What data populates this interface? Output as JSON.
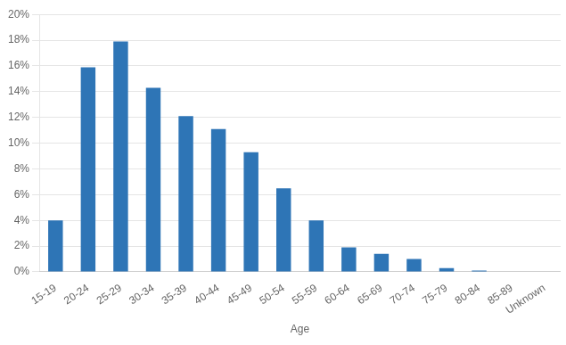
{
  "chart_data": {
    "type": "bar",
    "categories": [
      "15-19",
      "20-24",
      "25-29",
      "30-34",
      "35-39",
      "40-44",
      "45-49",
      "50-54",
      "55-59",
      "60-64",
      "65-69",
      "70-74",
      "75-79",
      "80-84",
      "85-89",
      "Unknown"
    ],
    "values": [
      4.0,
      15.9,
      17.9,
      14.3,
      12.1,
      11.1,
      9.3,
      6.5,
      4.0,
      1.9,
      1.4,
      1.0,
      0.3,
      0.1,
      0.0,
      0.0
    ],
    "color": "#2E75B6",
    "xlabel": "Age",
    "ylim": [
      0,
      20
    ],
    "yticks": [
      {
        "value": 0,
        "label": "0%"
      },
      {
        "value": 2,
        "label": "2%"
      },
      {
        "value": 4,
        "label": "4%"
      },
      {
        "value": 6,
        "label": "6%"
      },
      {
        "value": 8,
        "label": "8%"
      },
      {
        "value": 10,
        "label": "10%"
      },
      {
        "value": 12,
        "label": "12%"
      },
      {
        "value": 14,
        "label": "14%"
      },
      {
        "value": 16,
        "label": "16%"
      },
      {
        "value": 18,
        "label": "18%"
      },
      {
        "value": 20,
        "label": "20%"
      }
    ],
    "grid": true
  }
}
